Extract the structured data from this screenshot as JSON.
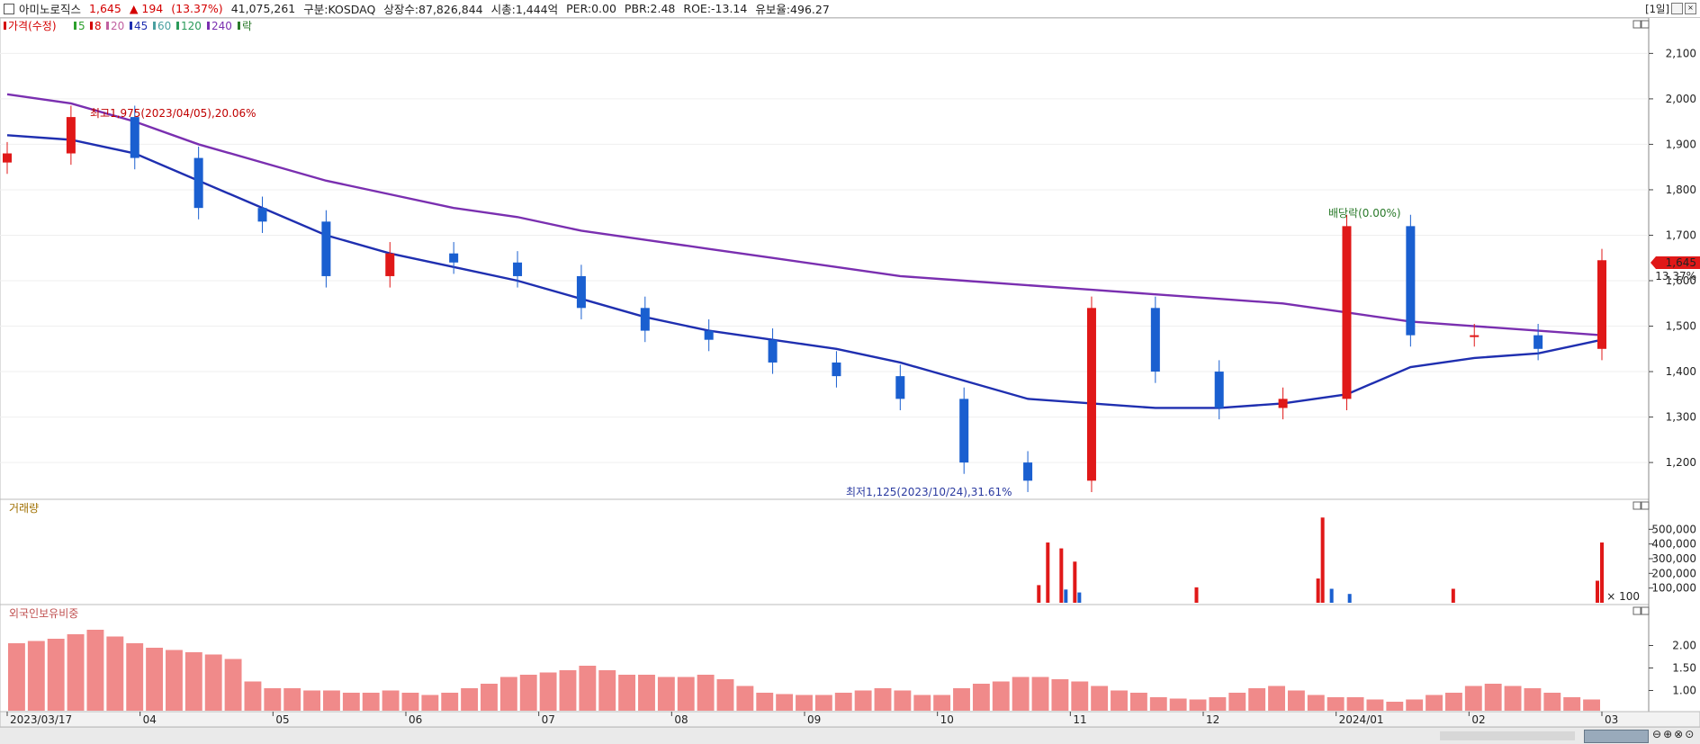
{
  "header": {
    "stock_name": "아미노로직스",
    "price": "1,645",
    "change": "▲ 194",
    "change_pct": "(13.37%)",
    "volume": "41,075,261",
    "market": "구분:KOSDAQ",
    "shares": "상장수:87,826,844",
    "market_cap": "시총:1,444억",
    "per": "PER:0.00",
    "pbr": "PBR:2.48",
    "roe": "ROE:-13.14",
    "float_ratio": "유보율:496.27",
    "period": "[1일]"
  },
  "legend": {
    "price": "가격(수정)",
    "items": [
      {
        "label": "5",
        "color": "#2ca02c"
      },
      {
        "label": "8",
        "color": "#d40000"
      },
      {
        "label": "20",
        "color": "#c060a0"
      },
      {
        "label": "45",
        "color": "#1f2fb0"
      },
      {
        "label": "60",
        "color": "#4aa0a0"
      },
      {
        "label": "120",
        "color": "#2a9a5a"
      },
      {
        "label": "240",
        "color": "#7a2fb0"
      }
    ],
    "event": "락"
  },
  "annotations": {
    "high": "최고1,975(2023/04/05),20.06%",
    "low": "최저1,125(2023/10/24),31.61%",
    "dividend": "배당락(0.00%)"
  },
  "price_badge": {
    "value": "1,645",
    "pct": "13.37%"
  },
  "volume_panel": {
    "title": "거래량",
    "unit_label": "× 100"
  },
  "foreign_panel": {
    "title": "외국인보유비중"
  },
  "colors": {
    "up": "#e01818",
    "down": "#1a5fd0",
    "foreign_bar": "#f08a8a",
    "ma240": "#7a2fb0",
    "ma45": "#1f2fb0"
  },
  "chart_data": [
    {
      "type": "candlestick",
      "x": [
        "2023/03/17",
        "2023/03/31",
        "2023/04/14",
        "2023/04/28",
        "2023/05/12",
        "2023/05/26",
        "2023/06/09",
        "2023/06/23",
        "2023/07/07",
        "2023/07/21",
        "2023/08/04",
        "2023/08/18",
        "2023/09/01",
        "2023/09/15",
        "2023/09/29",
        "2023/10/13",
        "2023/10/27",
        "2023/11/10",
        "2023/11/24",
        "2023/12/08",
        "2023/12/22",
        "2024/01/05",
        "2024/01/19",
        "2024/02/02",
        "2024/02/16",
        "2024/03/05"
      ],
      "close": [
        1880,
        1960,
        1870,
        1760,
        1730,
        1610,
        1660,
        1640,
        1610,
        1540,
        1490,
        1470,
        1420,
        1390,
        1340,
        1200,
        1160,
        1540,
        1400,
        1320,
        1340,
        1720,
        1480,
        1480,
        1450,
        1645
      ],
      "ma240": [
        2010,
        1990,
        1950,
        1900,
        1860,
        1820,
        1790,
        1760,
        1740,
        1710,
        1690,
        1670,
        1650,
        1630,
        1610,
        1600,
        1590,
        1580,
        1570,
        1560,
        1550,
        1530,
        1510,
        1500,
        1490,
        1480
      ],
      "ma45": [
        1920,
        1910,
        1880,
        1820,
        1760,
        1700,
        1660,
        1630,
        1600,
        1560,
        1520,
        1490,
        1470,
        1450,
        1420,
        1380,
        1340,
        1330,
        1320,
        1320,
        1330,
        1350,
        1410,
        1430,
        1440,
        1470
      ],
      "y_ticks": [
        "2,100",
        "2,000",
        "1,900",
        "1,800",
        "1,700",
        "1,600",
        "1,500",
        "1,400",
        "1,300",
        "1,200"
      ],
      "ylim": [
        1125,
        2170
      ],
      "x_tick_labels": [
        "2023/03/17",
        "04",
        "05",
        "06",
        "07",
        "08",
        "09",
        "10",
        "11",
        "12",
        "2024/01",
        "02",
        "03"
      ]
    },
    {
      "type": "bar",
      "title": "거래량",
      "y_ticks": [
        "500,000",
        "400,000",
        "300,000",
        "200,000",
        "100,000"
      ],
      "ylim": [
        0,
        600000
      ],
      "spikes": [
        {
          "x": "2023/11/01",
          "value": 120000,
          "color": "up"
        },
        {
          "x": "2023/11/03",
          "value": 410000,
          "color": "up"
        },
        {
          "x": "2023/11/06",
          "value": 370000,
          "color": "up"
        },
        {
          "x": "2023/11/07",
          "value": 90000,
          "color": "down"
        },
        {
          "x": "2023/11/09",
          "value": 280000,
          "color": "up"
        },
        {
          "x": "2023/11/10",
          "value": 70000,
          "color": "down"
        },
        {
          "x": "2023/12/06",
          "value": 105000,
          "color": "up"
        },
        {
          "x": "2024/01/02",
          "value": 165000,
          "color": "up"
        },
        {
          "x": "2024/01/03",
          "value": 580000,
          "color": "up"
        },
        {
          "x": "2024/01/05",
          "value": 95000,
          "color": "down"
        },
        {
          "x": "2024/01/09",
          "value": 60000,
          "color": "down"
        },
        {
          "x": "2024/02/01",
          "value": 95000,
          "color": "up"
        },
        {
          "x": "2024/03/04",
          "value": 150000,
          "color": "up"
        },
        {
          "x": "2024/03/05",
          "value": 410000,
          "color": "up"
        }
      ]
    },
    {
      "type": "bar",
      "title": "외국인보유비중",
      "y_ticks": [
        "2.00",
        "1.50",
        "1.00"
      ],
      "ylim": [
        0.55,
        2.55
      ],
      "values": [
        2.05,
        2.1,
        2.15,
        2.25,
        2.35,
        2.2,
        2.05,
        1.95,
        1.9,
        1.85,
        1.8,
        1.7,
        1.2,
        1.05,
        1.05,
        1.0,
        1.0,
        0.95,
        0.95,
        1.0,
        0.95,
        0.9,
        0.95,
        1.05,
        1.15,
        1.3,
        1.35,
        1.4,
        1.45,
        1.55,
        1.45,
        1.35,
        1.35,
        1.3,
        1.3,
        1.35,
        1.25,
        1.1,
        0.95,
        0.92,
        0.9,
        0.9,
        0.95,
        1.0,
        1.05,
        1.0,
        0.9,
        0.9,
        1.05,
        1.15,
        1.2,
        1.3,
        1.3,
        1.25,
        1.2,
        1.1,
        1.0,
        0.95,
        0.85,
        0.82,
        0.8,
        0.85,
        0.95,
        1.05,
        1.1,
        1.0,
        0.9,
        0.85,
        0.85,
        0.8,
        0.75,
        0.8,
        0.9,
        0.95,
        1.1,
        1.15,
        1.1,
        1.05,
        0.95,
        0.85,
        0.8
      ]
    }
  ]
}
